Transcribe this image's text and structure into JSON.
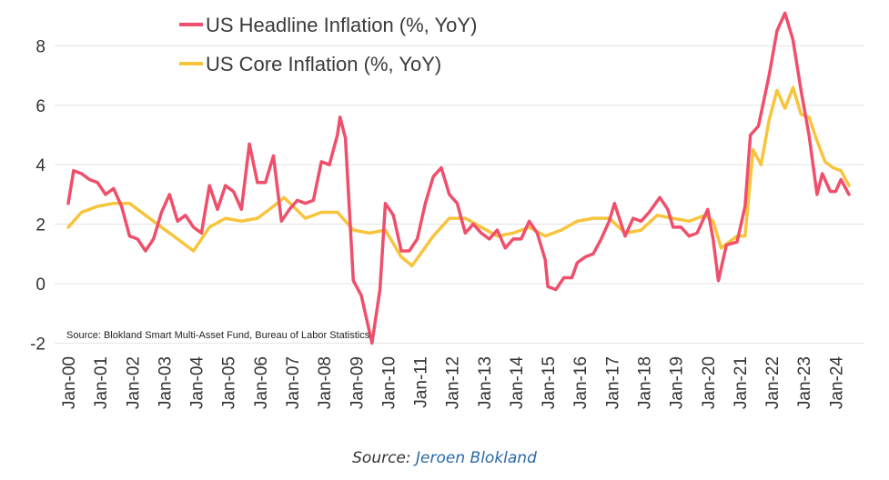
{
  "chart_data": {
    "type": "line",
    "ylim": [
      -2,
      9
    ],
    "yticks": [
      -2,
      0,
      2,
      4,
      6,
      8
    ],
    "grid": true,
    "legend_position": "top-left",
    "x_tick_labels": [
      "Jan-00",
      "Jan-01",
      "Jan-02",
      "Jan-03",
      "Jan-04",
      "Jan-05",
      "Jan-06",
      "Jan-07",
      "Jan-08",
      "Jan-09",
      "Jan-10",
      "Jan-11",
      "Jan-12",
      "Jan-13",
      "Jan-14",
      "Jan-15",
      "Jan-16",
      "Jan-17",
      "Jan-18",
      "Jan-19",
      "Jan-20",
      "Jan-21",
      "Jan-22",
      "Jan-23",
      "Jan-24"
    ],
    "annotation": "Source: Blokland Smart Multi-Asset Fund, Bureau of Labor Statistics",
    "series": [
      {
        "name": "US Headline Inflation (%, YoY)",
        "color": "#ef4f6b",
        "points": [
          [
            "2000-01",
            2.7
          ],
          [
            "2000-03",
            3.8
          ],
          [
            "2000-06",
            3.7
          ],
          [
            "2000-09",
            3.5
          ],
          [
            "2000-12",
            3.4
          ],
          [
            "2001-03",
            3.0
          ],
          [
            "2001-06",
            3.2
          ],
          [
            "2001-09",
            2.6
          ],
          [
            "2001-12",
            1.6
          ],
          [
            "2002-03",
            1.5
          ],
          [
            "2002-06",
            1.1
          ],
          [
            "2002-09",
            1.5
          ],
          [
            "2002-12",
            2.4
          ],
          [
            "2003-03",
            3.0
          ],
          [
            "2003-06",
            2.1
          ],
          [
            "2003-09",
            2.3
          ],
          [
            "2003-12",
            1.9
          ],
          [
            "2004-03",
            1.7
          ],
          [
            "2004-06",
            3.3
          ],
          [
            "2004-09",
            2.5
          ],
          [
            "2004-12",
            3.3
          ],
          [
            "2005-03",
            3.1
          ],
          [
            "2005-06",
            2.5
          ],
          [
            "2005-09",
            4.7
          ],
          [
            "2005-12",
            3.4
          ],
          [
            "2006-03",
            3.4
          ],
          [
            "2006-06",
            4.3
          ],
          [
            "2006-09",
            2.1
          ],
          [
            "2006-12",
            2.5
          ],
          [
            "2007-03",
            2.8
          ],
          [
            "2007-06",
            2.7
          ],
          [
            "2007-09",
            2.8
          ],
          [
            "2007-12",
            4.1
          ],
          [
            "2008-03",
            4.0
          ],
          [
            "2008-06",
            5.0
          ],
          [
            "2008-07",
            5.6
          ],
          [
            "2008-09",
            4.9
          ],
          [
            "2008-12",
            0.1
          ],
          [
            "2009-03",
            -0.4
          ],
          [
            "2009-07",
            -2.0
          ],
          [
            "2009-10",
            -0.2
          ],
          [
            "2009-12",
            2.7
          ],
          [
            "2010-03",
            2.3
          ],
          [
            "2010-06",
            1.1
          ],
          [
            "2010-09",
            1.1
          ],
          [
            "2010-12",
            1.5
          ],
          [
            "2011-03",
            2.7
          ],
          [
            "2011-06",
            3.6
          ],
          [
            "2011-09",
            3.9
          ],
          [
            "2011-12",
            3.0
          ],
          [
            "2012-03",
            2.7
          ],
          [
            "2012-06",
            1.7
          ],
          [
            "2012-09",
            2.0
          ],
          [
            "2012-12",
            1.7
          ],
          [
            "2013-03",
            1.5
          ],
          [
            "2013-06",
            1.8
          ],
          [
            "2013-09",
            1.2
          ],
          [
            "2013-12",
            1.5
          ],
          [
            "2014-03",
            1.5
          ],
          [
            "2014-06",
            2.1
          ],
          [
            "2014-09",
            1.7
          ],
          [
            "2014-12",
            0.8
          ],
          [
            "2015-01",
            -0.1
          ],
          [
            "2015-04",
            -0.2
          ],
          [
            "2015-07",
            0.2
          ],
          [
            "2015-10",
            0.2
          ],
          [
            "2015-12",
            0.7
          ],
          [
            "2016-03",
            0.9
          ],
          [
            "2016-06",
            1.0
          ],
          [
            "2016-09",
            1.5
          ],
          [
            "2016-12",
            2.1
          ],
          [
            "2017-02",
            2.7
          ],
          [
            "2017-06",
            1.6
          ],
          [
            "2017-09",
            2.2
          ],
          [
            "2017-12",
            2.1
          ],
          [
            "2018-03",
            2.4
          ],
          [
            "2018-07",
            2.9
          ],
          [
            "2018-10",
            2.5
          ],
          [
            "2018-12",
            1.9
          ],
          [
            "2019-03",
            1.9
          ],
          [
            "2019-06",
            1.6
          ],
          [
            "2019-09",
            1.7
          ],
          [
            "2019-12",
            2.3
          ],
          [
            "2020-01",
            2.5
          ],
          [
            "2020-03",
            1.5
          ],
          [
            "2020-05",
            0.1
          ],
          [
            "2020-08",
            1.3
          ],
          [
            "2020-12",
            1.4
          ],
          [
            "2021-03",
            2.6
          ],
          [
            "2021-05",
            5.0
          ],
          [
            "2021-08",
            5.3
          ],
          [
            "2021-12",
            7.0
          ],
          [
            "2022-03",
            8.5
          ],
          [
            "2022-06",
            9.1
          ],
          [
            "2022-09",
            8.2
          ],
          [
            "2022-12",
            6.5
          ],
          [
            "2023-03",
            5.0
          ],
          [
            "2023-06",
            3.0
          ],
          [
            "2023-08",
            3.7
          ],
          [
            "2023-11",
            3.1
          ],
          [
            "2024-01",
            3.1
          ],
          [
            "2024-03",
            3.5
          ],
          [
            "2024-06",
            3.0
          ]
        ]
      },
      {
        "name": "US Core Inflation (%, YoY)",
        "color": "#f7c43d",
        "points": [
          [
            "2000-01",
            1.9
          ],
          [
            "2000-06",
            2.4
          ],
          [
            "2000-12",
            2.6
          ],
          [
            "2001-06",
            2.7
          ],
          [
            "2001-12",
            2.7
          ],
          [
            "2002-06",
            2.3
          ],
          [
            "2002-12",
            1.9
          ],
          [
            "2003-06",
            1.5
          ],
          [
            "2003-12",
            1.1
          ],
          [
            "2004-06",
            1.9
          ],
          [
            "2004-12",
            2.2
          ],
          [
            "2005-06",
            2.1
          ],
          [
            "2005-12",
            2.2
          ],
          [
            "2006-06",
            2.6
          ],
          [
            "2006-10",
            2.9
          ],
          [
            "2007-06",
            2.2
          ],
          [
            "2007-12",
            2.4
          ],
          [
            "2008-06",
            2.4
          ],
          [
            "2008-12",
            1.8
          ],
          [
            "2009-06",
            1.7
          ],
          [
            "2009-12",
            1.8
          ],
          [
            "2010-06",
            0.9
          ],
          [
            "2010-10",
            0.6
          ],
          [
            "2011-06",
            1.6
          ],
          [
            "2011-12",
            2.2
          ],
          [
            "2012-06",
            2.2
          ],
          [
            "2012-12",
            1.9
          ],
          [
            "2013-06",
            1.6
          ],
          [
            "2013-12",
            1.7
          ],
          [
            "2014-06",
            1.9
          ],
          [
            "2014-12",
            1.6
          ],
          [
            "2015-06",
            1.8
          ],
          [
            "2015-12",
            2.1
          ],
          [
            "2016-06",
            2.2
          ],
          [
            "2016-12",
            2.2
          ],
          [
            "2017-06",
            1.7
          ],
          [
            "2017-12",
            1.8
          ],
          [
            "2018-06",
            2.3
          ],
          [
            "2018-12",
            2.2
          ],
          [
            "2019-06",
            2.1
          ],
          [
            "2019-12",
            2.3
          ],
          [
            "2020-03",
            2.1
          ],
          [
            "2020-06",
            1.2
          ],
          [
            "2020-12",
            1.6
          ],
          [
            "2021-03",
            1.6
          ],
          [
            "2021-06",
            4.5
          ],
          [
            "2021-09",
            4.0
          ],
          [
            "2021-12",
            5.5
          ],
          [
            "2022-03",
            6.5
          ],
          [
            "2022-06",
            5.9
          ],
          [
            "2022-09",
            6.6
          ],
          [
            "2022-12",
            5.7
          ],
          [
            "2023-03",
            5.6
          ],
          [
            "2023-06",
            4.8
          ],
          [
            "2023-09",
            4.1
          ],
          [
            "2023-12",
            3.9
          ],
          [
            "2024-03",
            3.8
          ],
          [
            "2024-06",
            3.3
          ]
        ]
      }
    ]
  },
  "caption": {
    "prefix": "Source: ",
    "author": "Jeroen Blokland"
  }
}
